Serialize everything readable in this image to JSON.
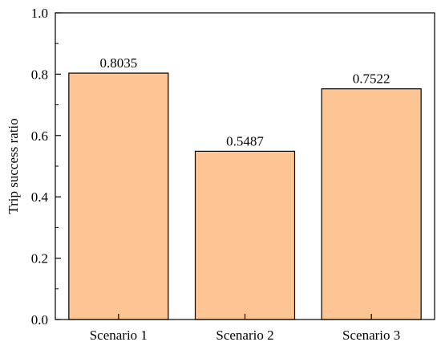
{
  "chart_data": {
    "type": "bar",
    "title": "",
    "xlabel": "",
    "ylabel": "Trip success ratio",
    "categories": [
      "Scenario 1",
      "Scenario 2",
      "Scenario 3"
    ],
    "values": [
      0.8035,
      0.5487,
      0.7522
    ],
    "value_labels": [
      "0.8035",
      "0.5487",
      "0.7522"
    ],
    "ylim": [
      0,
      1.0
    ],
    "yticks": [
      0.0,
      0.2,
      0.4,
      0.6,
      0.8,
      1.0
    ],
    "ytick_labels": [
      "0.0",
      "0.2",
      "0.4",
      "0.6",
      "0.8",
      "1.0"
    ],
    "grid": false,
    "legend": "none",
    "colors": {
      "bar_fill": "#FCC593",
      "bar_stroke": "#000000",
      "axis": "#000000"
    }
  }
}
